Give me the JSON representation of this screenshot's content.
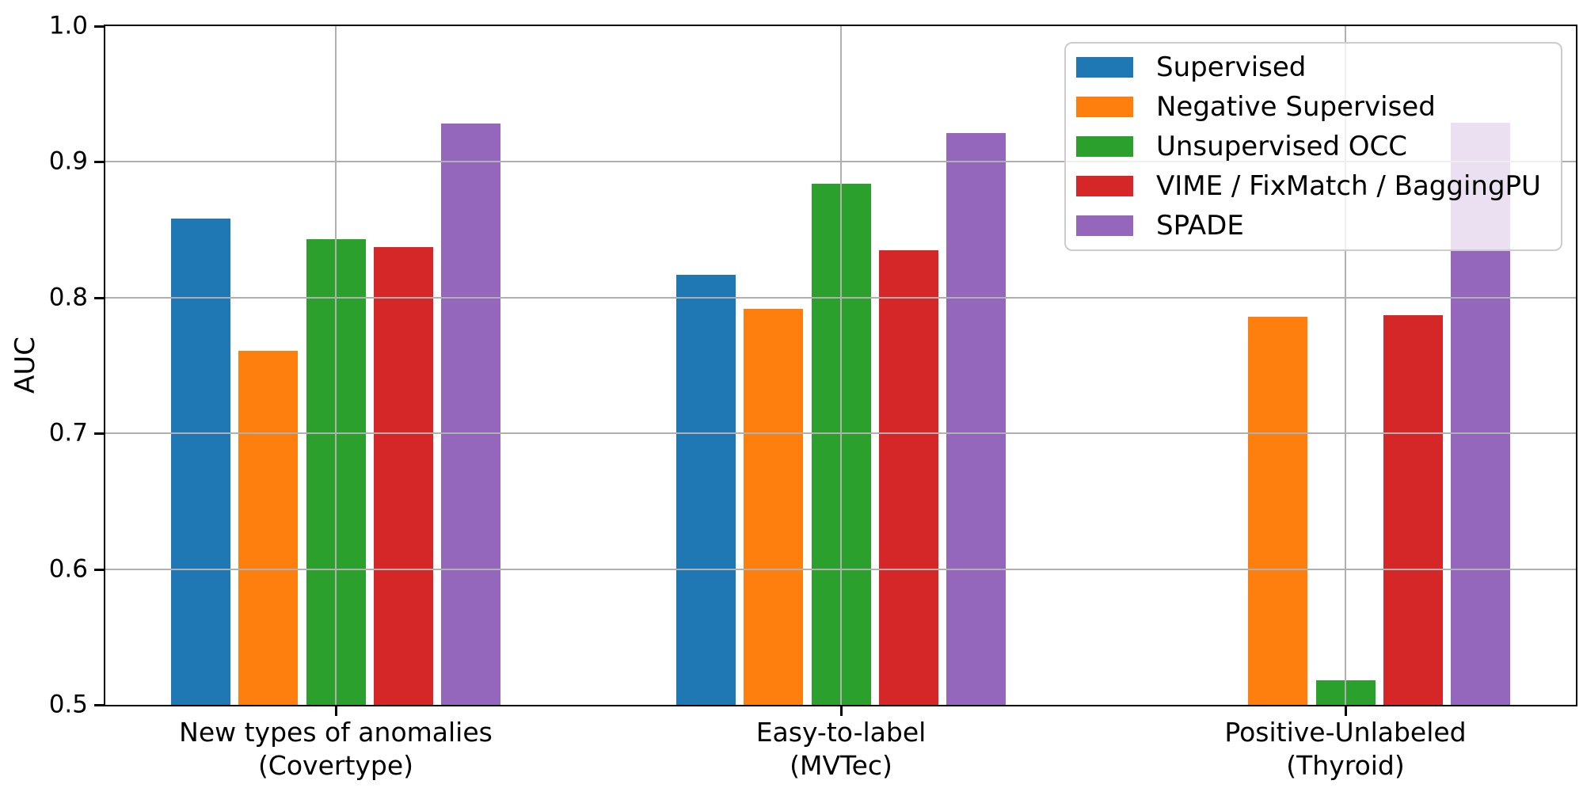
{
  "figure": {
    "background": "#ffffff",
    "text_color": "#000000",
    "spine_color": "#000000"
  },
  "chart_data": {
    "type": "bar",
    "title": "",
    "xlabel": "",
    "ylabel": "AUC",
    "ylim": [
      0.5,
      1.0
    ],
    "yticks": [
      0.5,
      0.6,
      0.7,
      0.8,
      0.9,
      1.0
    ],
    "ytick_labels": [
      "0.5",
      "0.6",
      "0.7",
      "0.8",
      "0.9",
      "1.0"
    ],
    "grid": true,
    "grid_color": "#b0b0b0",
    "grid_above_bars": true,
    "legend_position": "upper right",
    "legend_background_alpha": 0.8,
    "categories": [
      "New types of anomalies\n(Covertype)",
      "Easy-to-label\n(MVTec)",
      "Positive-Unlabeled\n(Thyroid)"
    ],
    "series": [
      {
        "name": "Supervised",
        "color": "#1f77b4",
        "values": [
          0.858,
          0.817,
          null
        ]
      },
      {
        "name": "Negative Supervised",
        "color": "#ff7f0e",
        "values": [
          0.761,
          0.792,
          0.786
        ]
      },
      {
        "name": "Unsupervised OCC",
        "color": "#2ca02c",
        "values": [
          0.843,
          0.884,
          0.518
        ]
      },
      {
        "name": "VIME / FixMatch / BaggingPU",
        "color": "#d62728",
        "values": [
          0.837,
          0.835,
          0.787
        ]
      },
      {
        "name": "SPADE",
        "color": "#9467bd",
        "values": [
          0.928,
          0.921,
          0.929
        ]
      }
    ]
  }
}
